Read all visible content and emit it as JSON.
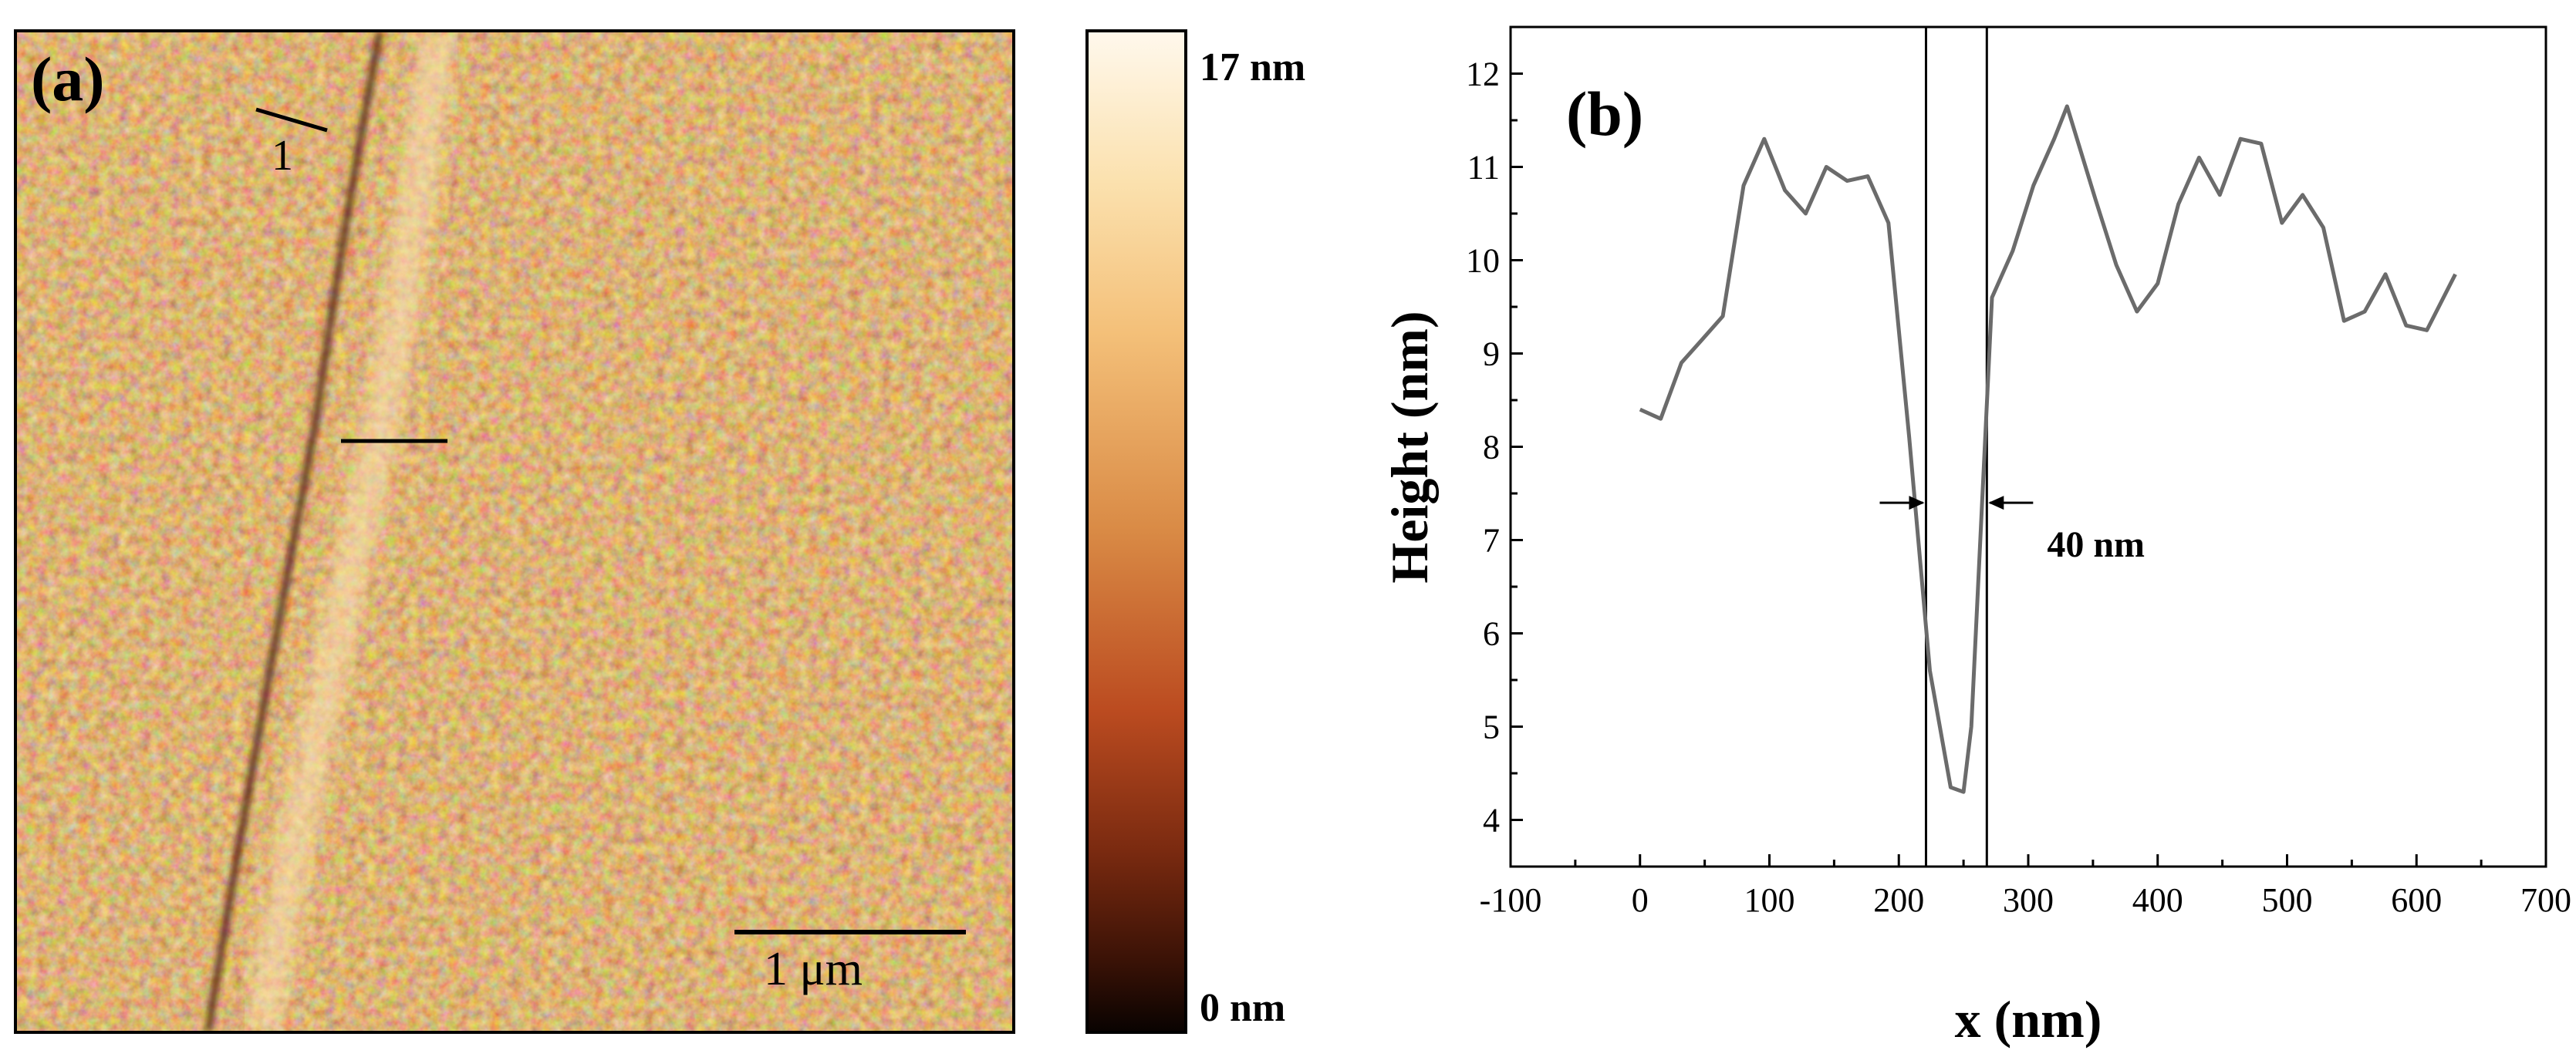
{
  "panel_a": {
    "label": "(a)",
    "profile_label": "1",
    "scale_bar_label": "1 μm",
    "colorbar_max_label": "17 nm",
    "colorbar_min_label": "0 nm"
  },
  "chart_data": {
    "type": "line",
    "title": "(b)",
    "xlabel": "x (nm)",
    "ylabel": "Height (nm)",
    "xlim": [
      -100,
      700
    ],
    "ylim": [
      3.5,
      12.5
    ],
    "xticks": [
      -100,
      0,
      100,
      200,
      300,
      400,
      500,
      600,
      700
    ],
    "yticks": [
      4,
      5,
      6,
      7,
      8,
      9,
      10,
      11,
      12
    ],
    "series": [
      {
        "name": "profile 1",
        "color": "#6b6b6b",
        "x": [
          0,
          16,
          32,
          48,
          64,
          80,
          96,
          112,
          128,
          144,
          160,
          176,
          192,
          208,
          224,
          240,
          250,
          256,
          272,
          288,
          304,
          320,
          330,
          352,
          368,
          384,
          400,
          416,
          432,
          448,
          464,
          480,
          496,
          512,
          528,
          544,
          560,
          576,
          592,
          608,
          630
        ],
        "y": [
          8.4,
          8.3,
          8.9,
          9.15,
          9.4,
          10.8,
          11.3,
          10.75,
          10.5,
          11.0,
          10.85,
          10.9,
          10.4,
          8.1,
          5.6,
          4.35,
          4.3,
          5.0,
          9.6,
          10.1,
          10.8,
          11.3,
          11.65,
          10.65,
          9.95,
          9.45,
          9.75,
          10.6,
          11.1,
          10.7,
          11.3,
          11.25,
          10.4,
          10.7,
          10.35,
          9.35,
          9.45,
          9.85,
          9.3,
          9.25,
          9.85
        ]
      }
    ],
    "vlines": [
      221,
      268
    ],
    "annotation": {
      "text": "40 nm",
      "x1": 221,
      "x2": 268,
      "y": 7.4
    }
  }
}
